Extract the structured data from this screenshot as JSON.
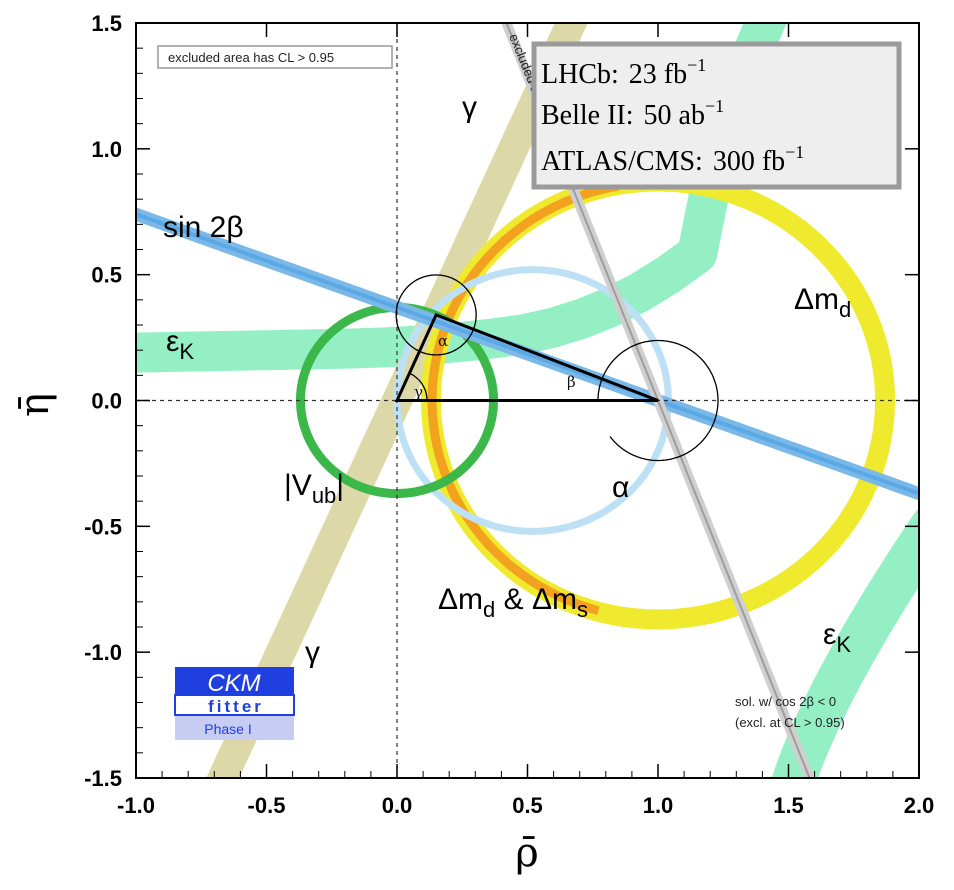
{
  "chart_data": {
    "type": "scatter",
    "title": "",
    "xlabel": "ρ̄",
    "ylabel": "η̄",
    "xlim": [
      -1.0,
      2.0
    ],
    "ylim": [
      -1.5,
      1.5
    ],
    "x_ticks": [
      "-1.0",
      "-0.5",
      "0.0",
      "0.5",
      "1.0",
      "1.5",
      "2.0"
    ],
    "y_ticks": [
      "1.5",
      "1.0",
      "0.5",
      "0.0",
      "-0.5",
      "-1.0",
      "-1.5"
    ],
    "x_tick_values": [
      -1.0,
      -0.5,
      0.0,
      0.5,
      1.0,
      1.5,
      2.0
    ],
    "y_tick_values": [
      1.5,
      1.0,
      0.5,
      0.0,
      -0.5,
      -1.0,
      -1.5
    ],
    "apex": {
      "rho": 0.15,
      "eta": 0.34
    },
    "triangle": [
      [
        0,
        0
      ],
      [
        1,
        0
      ],
      [
        0.15,
        0.34
      ]
    ],
    "constraints": {
      "vub": {
        "label": "|V",
        "sub": "ub",
        "label_close": "|",
        "center": [
          0,
          0
        ],
        "radius": 0.37,
        "color": "#3cb84a"
      },
      "dmd": {
        "label": "Δm",
        "sub": "d",
        "center": [
          1,
          0
        ],
        "radius": 0.87,
        "color": "#f0ea2e"
      },
      "dmd_dms": {
        "label": "Δm",
        "sub1": "d",
        "amp": " & Δm",
        "sub2": "s",
        "center": [
          1,
          0
        ],
        "radius": 0.87,
        "color": "#f39a1e"
      },
      "alpha": {
        "label": "α",
        "center": [
          0.52,
          0
        ],
        "radius": 0.52,
        "color": "#bde0f5"
      },
      "sin2beta": {
        "label": "sin 2β",
        "through": [
          1,
          0
        ],
        "slope": -0.37,
        "color": "#7ab8e8"
      },
      "gamma": {
        "label": "γ",
        "angle_deg": 66,
        "color": "#ddd8a8"
      },
      "epsK": {
        "label": "ε",
        "sub": "K",
        "color": "#94f0c4"
      }
    },
    "angle_labels": {
      "alpha": "α",
      "beta": "β",
      "gamma": "γ"
    },
    "excluded_box": "excluded area has CL > 0.95",
    "diagonal_label": "excluded area has CL > 0.95",
    "experiments": [
      {
        "name": "LHCb:",
        "value": "23 fb",
        "exp": "−1"
      },
      {
        "name": "Belle II:",
        "value": "50 ab",
        "exp": "−1"
      },
      {
        "name": "ATLAS/CMS:",
        "value": "300 fb",
        "exp": "−1"
      }
    ],
    "solution_note": [
      "sol. w/ cos 2β < 0",
      "(excl. at CL > 0.95)"
    ],
    "logo": {
      "line1": "CKM",
      "line2": "fitter",
      "line3": "Phase I"
    },
    "grid": false,
    "legend": "top-right"
  }
}
